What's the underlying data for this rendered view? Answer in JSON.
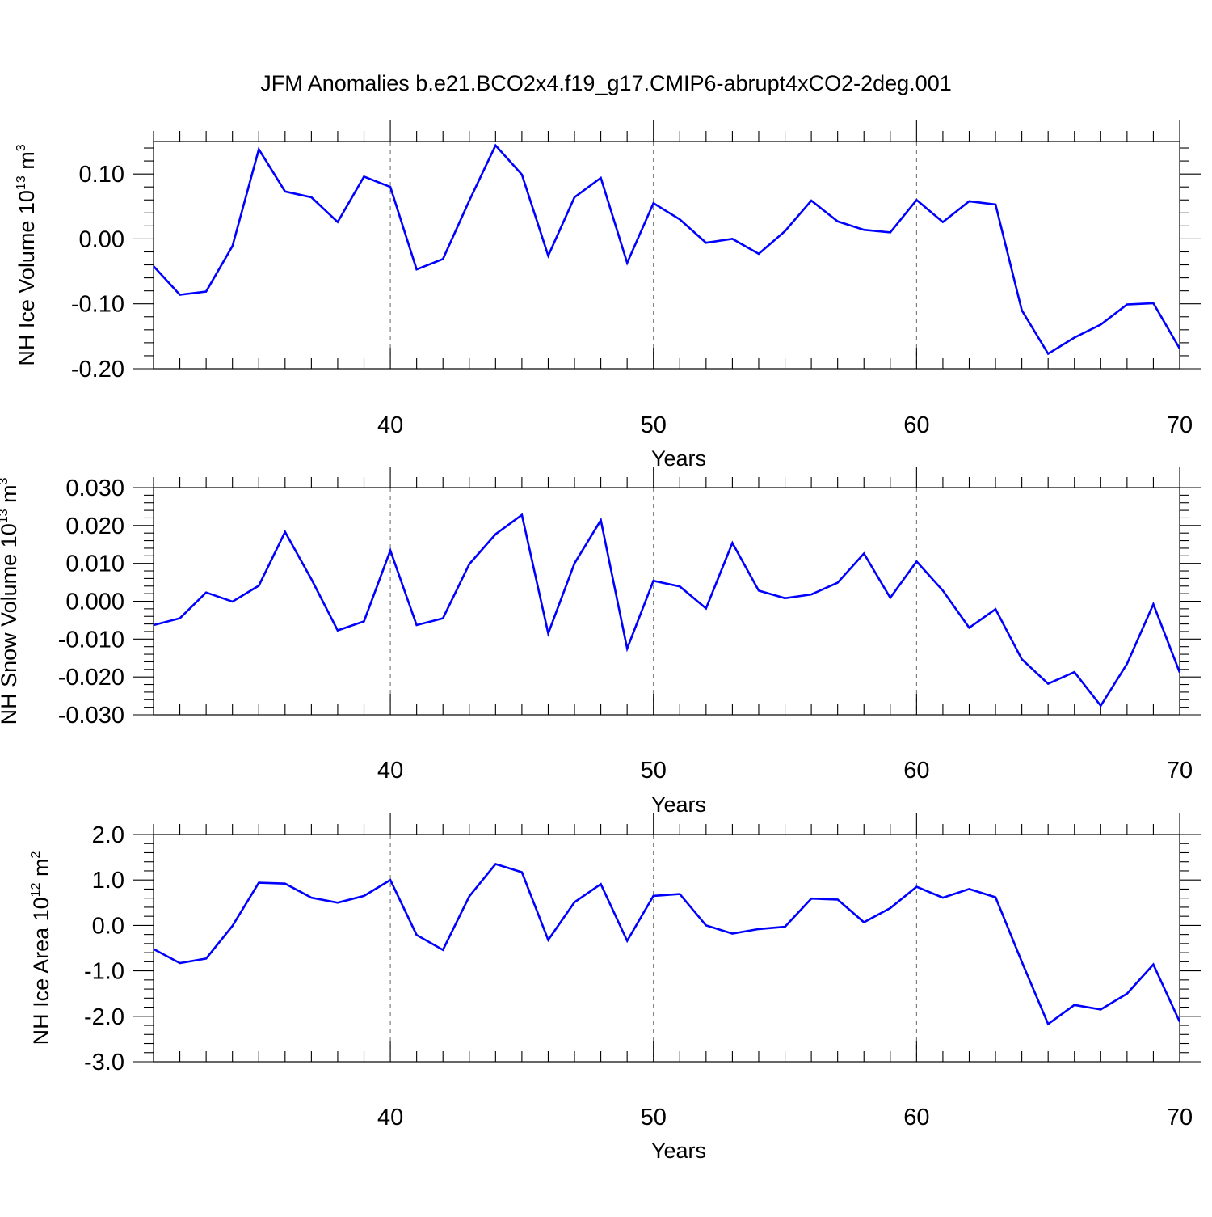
{
  "title": "JFM Anomalies b.e21.BCO2x4.f19_g17.CMIP6-abrupt4xCO2-2deg.001",
  "line_color": "#0000ff",
  "chart_data": [
    {
      "type": "line",
      "ylabel": "NH Ice Volume 10",
      "ylabel_exp": "13",
      "ylabel_unit": " m",
      "ylabel_unit_exp": "3",
      "xlabel": "Years",
      "xlim": [
        31,
        70
      ],
      "ylim": [
        -0.2,
        0.15
      ],
      "yticks": [
        -0.2,
        -0.1,
        0.0,
        0.1
      ],
      "ytick_labels": [
        "-0.20",
        "-0.10",
        "0.00",
        "0.10"
      ],
      "xticks": [
        40,
        50,
        60,
        70
      ],
      "xtick_labels": [
        "40",
        "50",
        "60",
        "70"
      ],
      "grid_x": [
        40,
        50,
        60
      ],
      "x": [
        31,
        32,
        33,
        34,
        35,
        36,
        37,
        38,
        39,
        40,
        41,
        42,
        43,
        44,
        45,
        46,
        47,
        48,
        49,
        50,
        51,
        52,
        53,
        54,
        55,
        56,
        57,
        58,
        59,
        60,
        61,
        62,
        63,
        64,
        65,
        66,
        67,
        68,
        69,
        70
      ],
      "values": [
        -0.042,
        -0.086,
        -0.081,
        -0.011,
        0.138,
        0.073,
        0.064,
        0.026,
        0.096,
        0.08,
        -0.047,
        -0.031,
        0.059,
        0.144,
        0.099,
        -0.026,
        0.064,
        0.094,
        -0.037,
        0.055,
        0.03,
        -0.006,
        0.0,
        -0.023,
        0.012,
        0.059,
        0.027,
        0.014,
        0.01,
        0.06,
        0.026,
        0.058,
        0.053,
        -0.11,
        -0.177,
        -0.152,
        -0.132,
        -0.101,
        -0.099,
        -0.169
      ]
    },
    {
      "type": "line",
      "ylabel": "NH Snow Volume 10",
      "ylabel_exp": "13",
      "ylabel_unit": " m",
      "ylabel_unit_exp": "3",
      "xlabel": "Years",
      "xlim": [
        31,
        70
      ],
      "ylim": [
        -0.03,
        0.03
      ],
      "yticks": [
        -0.03,
        -0.02,
        -0.01,
        0.0,
        0.01,
        0.02,
        0.03
      ],
      "ytick_labels": [
        "-0.030",
        "-0.020",
        "-0.010",
        "0.000",
        "0.010",
        "0.020",
        "0.030"
      ],
      "xticks": [
        40,
        50,
        60,
        70
      ],
      "xtick_labels": [
        "40",
        "50",
        "60",
        "70"
      ],
      "grid_x": [
        40,
        50,
        60
      ],
      "x": [
        31,
        32,
        33,
        34,
        35,
        36,
        37,
        38,
        39,
        40,
        41,
        42,
        43,
        44,
        45,
        46,
        47,
        48,
        49,
        50,
        51,
        52,
        53,
        54,
        55,
        56,
        57,
        58,
        59,
        60,
        61,
        62,
        63,
        64,
        65,
        66,
        67,
        68,
        69,
        70
      ],
      "values": [
        -0.0063,
        -0.0045,
        0.0023,
        -0.0001,
        0.0041,
        0.0183,
        0.0058,
        -0.0077,
        -0.0053,
        0.0134,
        -0.0063,
        -0.0045,
        0.0098,
        0.0177,
        0.0228,
        -0.0085,
        0.01,
        0.0214,
        -0.0125,
        0.0054,
        0.0039,
        -0.0019,
        0.0154,
        0.0028,
        0.0008,
        0.0018,
        0.0049,
        0.0126,
        0.0009,
        0.0105,
        0.0028,
        -0.007,
        -0.0021,
        -0.0153,
        -0.0218,
        -0.0187,
        -0.0276,
        -0.0165,
        -0.0008,
        -0.0188
      ]
    },
    {
      "type": "line",
      "ylabel": "NH Ice Area 10",
      "ylabel_exp": "12",
      "ylabel_unit": " m",
      "ylabel_unit_exp": "2",
      "xlabel": "Years",
      "xlim": [
        31,
        70
      ],
      "ylim": [
        -3.0,
        2.0
      ],
      "yticks": [
        -3.0,
        -2.0,
        -1.0,
        0.0,
        1.0,
        2.0
      ],
      "ytick_labels": [
        "-3.0",
        "-2.0",
        "-1.0",
        "0.0",
        "1.0",
        "2.0"
      ],
      "xticks": [
        40,
        50,
        60,
        70
      ],
      "xtick_labels": [
        "40",
        "50",
        "60",
        "70"
      ],
      "grid_x": [
        40,
        50,
        60
      ],
      "x": [
        31,
        32,
        33,
        34,
        35,
        36,
        37,
        38,
        39,
        40,
        41,
        42,
        43,
        44,
        45,
        46,
        47,
        48,
        49,
        50,
        51,
        52,
        53,
        54,
        55,
        56,
        57,
        58,
        59,
        60,
        61,
        62,
        63,
        64,
        65,
        66,
        67,
        68,
        69,
        70
      ],
      "values": [
        -0.52,
        -0.83,
        -0.73,
        -0.01,
        0.94,
        0.92,
        0.61,
        0.5,
        0.65,
        1.0,
        -0.21,
        -0.54,
        0.64,
        1.35,
        1.17,
        -0.32,
        0.51,
        0.91,
        -0.34,
        0.65,
        0.69,
        0.0,
        -0.18,
        -0.08,
        -0.03,
        0.59,
        0.57,
        0.07,
        0.38,
        0.85,
        0.61,
        0.8,
        0.62,
        -0.8,
        -2.17,
        -1.75,
        -1.85,
        -1.5,
        -0.86,
        -2.12
      ]
    }
  ]
}
